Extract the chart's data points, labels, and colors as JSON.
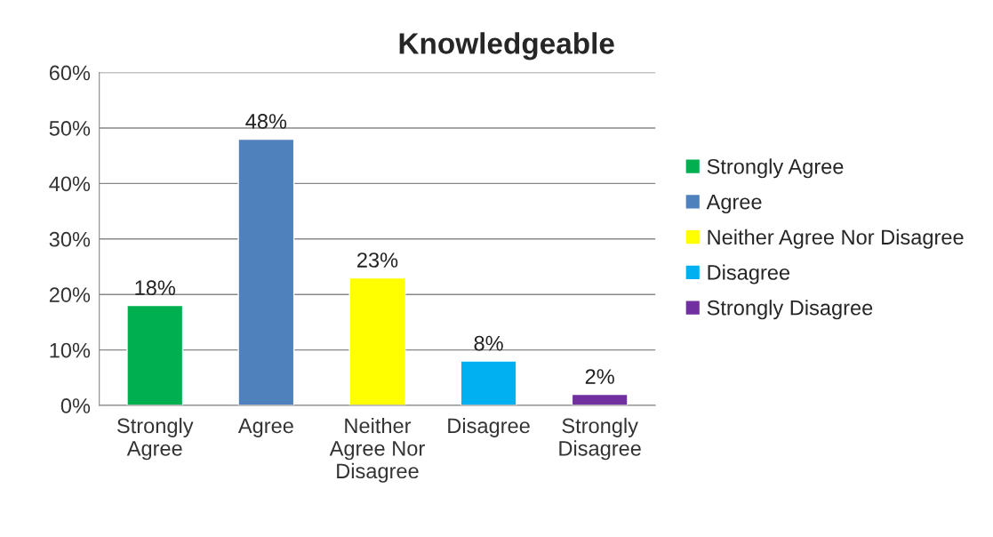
{
  "chart_data": {
    "type": "bar",
    "title": "Knowledgeable",
    "categories": [
      "Strongly\nAgree",
      "Agree",
      "Neither\nAgree Nor\nDisagree",
      "Disagree",
      "Strongly\nDisagree"
    ],
    "series": [
      {
        "name": "Strongly Agree",
        "color": "#00b050",
        "values": [
          18,
          null,
          null,
          null,
          null
        ],
        "value_labels": [
          "18%",
          null,
          null,
          null,
          null
        ]
      },
      {
        "name": "Agree",
        "color": "#4f81bd",
        "values": [
          null,
          48,
          null,
          null,
          null
        ],
        "value_labels": [
          null,
          "48%",
          null,
          null,
          null
        ]
      },
      {
        "name": "Neither Agree Nor Disagree",
        "color": "#ffff00",
        "values": [
          null,
          null,
          23,
          null,
          null
        ],
        "value_labels": [
          null,
          null,
          "23%",
          null,
          null
        ]
      },
      {
        "name": "Disagree",
        "color": "#00b0f0",
        "values": [
          null,
          null,
          null,
          8,
          null
        ],
        "value_labels": [
          null,
          null,
          null,
          "8%",
          null
        ]
      },
      {
        "name": "Strongly Disagree",
        "color": "#7030a0",
        "values": [
          null,
          null,
          null,
          null,
          2
        ],
        "value_labels": [
          null,
          null,
          null,
          null,
          "2%"
        ]
      }
    ],
    "ylim": [
      0,
      60
    ],
    "yticks": [
      {
        "value": 0,
        "label": "0%"
      },
      {
        "value": 10,
        "label": "10%"
      },
      {
        "value": 20,
        "label": "20%"
      },
      {
        "value": 30,
        "label": "30%"
      },
      {
        "value": 40,
        "label": "40%"
      },
      {
        "value": 50,
        "label": "50%"
      },
      {
        "value": 60,
        "label": "60%"
      }
    ],
    "grid": "y",
    "legend": "right"
  }
}
